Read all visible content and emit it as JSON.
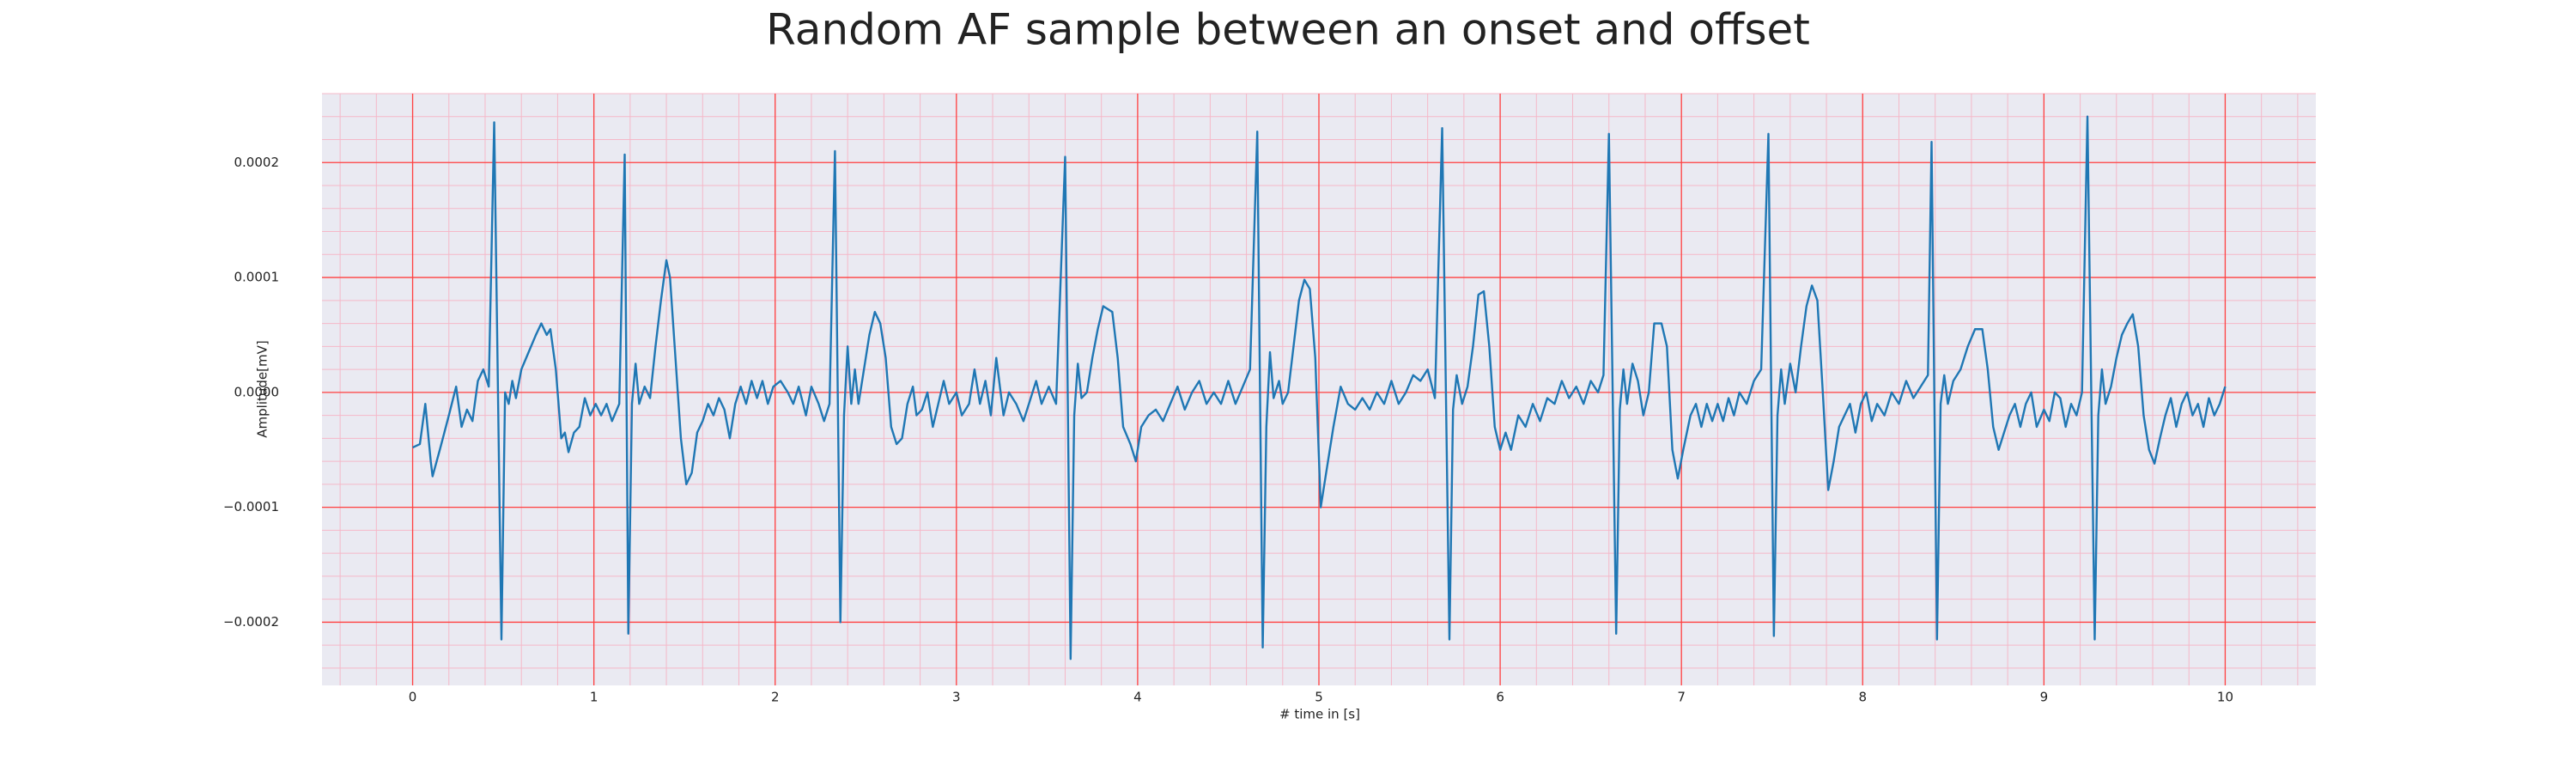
{
  "chart_data": {
    "type": "line",
    "title": "Random AF sample between an onset and offset",
    "xlabel": "# time in [s]",
    "ylabel": "Amplitude[mV]",
    "xlim": [
      -0.5,
      10.5
    ],
    "ylim": [
      -0.000255,
      0.00026
    ],
    "xticks": [
      0,
      1,
      2,
      3,
      4,
      5,
      6,
      7,
      8,
      9,
      10
    ],
    "yticks": [
      {
        "value": -0.0002,
        "label": "−0.0002"
      },
      {
        "value": -0.0001,
        "label": "−0.0001"
      },
      {
        "value": 0,
        "label": "0.0000"
      },
      0.0001,
      0.0002
    ],
    "grid": true,
    "minor_grid": true,
    "background": "#eaeaf2",
    "grid_color": "#ff4040",
    "minor_grid_color": "#f5b8c8",
    "series": [
      {
        "color": "#1f77b4",
        "x": [
          0.0,
          0.04,
          0.07,
          0.1,
          0.11,
          0.15,
          0.2,
          0.24,
          0.27,
          0.3,
          0.33,
          0.36,
          0.39,
          0.42,
          0.45,
          0.49,
          0.51,
          0.53,
          0.55,
          0.57,
          0.6,
          0.64,
          0.68,
          0.71,
          0.74,
          0.76,
          0.79,
          0.82,
          0.84,
          0.86,
          0.89,
          0.92,
          0.95,
          0.98,
          1.01,
          1.04,
          1.07,
          1.1,
          1.14,
          1.17,
          1.19,
          1.21,
          1.23,
          1.25,
          1.28,
          1.31,
          1.34,
          1.37,
          1.4,
          1.42,
          1.45,
          1.48,
          1.51,
          1.54,
          1.57,
          1.6,
          1.63,
          1.66,
          1.69,
          1.72,
          1.75,
          1.78,
          1.81,
          1.84,
          1.87,
          1.9,
          1.93,
          1.96,
          1.99,
          2.03,
          2.07,
          2.1,
          2.13,
          2.17,
          2.2,
          2.24,
          2.27,
          2.3,
          2.33,
          2.36,
          2.38,
          2.4,
          2.42,
          2.44,
          2.46,
          2.49,
          2.52,
          2.55,
          2.58,
          2.61,
          2.64,
          2.67,
          2.7,
          2.73,
          2.76,
          2.78,
          2.81,
          2.84,
          2.87,
          2.9,
          2.93,
          2.96,
          3.0,
          3.03,
          3.07,
          3.1,
          3.13,
          3.16,
          3.19,
          3.22,
          3.26,
          3.29,
          3.33,
          3.37,
          3.4,
          3.44,
          3.47,
          3.51,
          3.55,
          3.6,
          3.63,
          3.65,
          3.67,
          3.69,
          3.72,
          3.75,
          3.78,
          3.81,
          3.86,
          3.89,
          3.92,
          3.96,
          3.99,
          4.02,
          4.06,
          4.1,
          4.14,
          4.18,
          4.22,
          4.26,
          4.3,
          4.34,
          4.38,
          4.42,
          4.46,
          4.5,
          4.54,
          4.58,
          4.62,
          4.66,
          4.69,
          4.71,
          4.73,
          4.75,
          4.78,
          4.8,
          4.83,
          4.86,
          4.89,
          4.92,
          4.95,
          4.98,
          5.01,
          5.04,
          5.08,
          5.12,
          5.16,
          5.2,
          5.24,
          5.28,
          5.32,
          5.36,
          5.4,
          5.44,
          5.48,
          5.52,
          5.56,
          5.6,
          5.64,
          5.68,
          5.72,
          5.74,
          5.76,
          5.79,
          5.82,
          5.85,
          5.88,
          5.91,
          5.94,
          5.97,
          6.0,
          6.03,
          6.06,
          6.1,
          6.14,
          6.18,
          6.22,
          6.26,
          6.3,
          6.34,
          6.38,
          6.42,
          6.46,
          6.5,
          6.54,
          6.57,
          6.6,
          6.64,
          6.66,
          6.68,
          6.7,
          6.73,
          6.76,
          6.79,
          6.82,
          6.85,
          6.89,
          6.92,
          6.95,
          6.98,
          7.01,
          7.05,
          7.08,
          7.11,
          7.14,
          7.17,
          7.2,
          7.23,
          7.26,
          7.29,
          7.32,
          7.36,
          7.4,
          7.44,
          7.48,
          7.51,
          7.53,
          7.55,
          7.57,
          7.6,
          7.63,
          7.66,
          7.69,
          7.72,
          7.75,
          7.78,
          7.81,
          7.84,
          7.87,
          7.9,
          7.93,
          7.96,
          7.99,
          8.02,
          8.05,
          8.08,
          8.12,
          8.16,
          8.2,
          8.24,
          8.28,
          8.32,
          8.36,
          8.38,
          8.41,
          8.43,
          8.45,
          8.47,
          8.5,
          8.54,
          8.58,
          8.62,
          8.66,
          8.69,
          8.72,
          8.75,
          8.78,
          8.81,
          8.84,
          8.87,
          8.9,
          8.93,
          8.96,
          9.0,
          9.03,
          9.06,
          9.09,
          9.12,
          9.15,
          9.18,
          9.21,
          9.24,
          9.28,
          9.3,
          9.32,
          9.34,
          9.37,
          9.4,
          9.43,
          9.46,
          9.49,
          9.52,
          9.55,
          9.58,
          9.61,
          9.64,
          9.67,
          9.7,
          9.73,
          9.76,
          9.79,
          9.82,
          9.85,
          9.88,
          9.91,
          9.94,
          9.97,
          10.0
        ],
        "values": [
          -4.8e-05,
          -4.5e-05,
          -1e-05,
          -6e-05,
          -7.3e-05,
          -5e-05,
          -2e-05,
          5e-06,
          -3e-05,
          -1.5e-05,
          -2.5e-05,
          1e-05,
          2e-05,
          5e-06,
          0.000235,
          -0.000215,
          0,
          -1e-05,
          1e-05,
          -5e-06,
          2e-05,
          3.5e-05,
          5e-05,
          6e-05,
          5e-05,
          5.5e-05,
          2e-05,
          -4e-05,
          -3.5e-05,
          -5.2e-05,
          -3.5e-05,
          -3e-05,
          -5e-06,
          -2e-05,
          -1e-05,
          -2e-05,
          -1e-05,
          -2.5e-05,
          -1e-05,
          0.000207,
          -0.00021,
          -1e-05,
          2.5e-05,
          -1e-05,
          5e-06,
          -5e-06,
          4e-05,
          8e-05,
          0.000115,
          0.0001,
          3e-05,
          -4e-05,
          -8e-05,
          -7e-05,
          -3.5e-05,
          -2.5e-05,
          -1e-05,
          -2e-05,
          -5e-06,
          -1.5e-05,
          -4e-05,
          -1e-05,
          5e-06,
          -1e-05,
          1e-05,
          -5e-06,
          1e-05,
          -1e-05,
          5e-06,
          1e-05,
          0,
          -1e-05,
          5e-06,
          -2e-05,
          5e-06,
          -1e-05,
          -2.5e-05,
          -1e-05,
          0.00021,
          -0.0002,
          -2e-05,
          4e-05,
          -1e-05,
          2e-05,
          -1e-05,
          2e-05,
          5e-05,
          7e-05,
          6e-05,
          3e-05,
          -3e-05,
          -4.5e-05,
          -4e-05,
          -1e-05,
          5e-06,
          -2e-05,
          -1.5e-05,
          0,
          -3e-05,
          -1e-05,
          1e-05,
          -1e-05,
          0,
          -2e-05,
          -1e-05,
          2e-05,
          -1e-05,
          1e-05,
          -2e-05,
          3e-05,
          -2e-05,
          0,
          -1e-05,
          -2.5e-05,
          -1e-05,
          1e-05,
          -1e-05,
          5e-06,
          -1e-05,
          0.000205,
          -0.000232,
          -2e-05,
          2.5e-05,
          -5e-06,
          0,
          3e-05,
          5.5e-05,
          7.5e-05,
          7e-05,
          3e-05,
          -3e-05,
          -4.5e-05,
          -6e-05,
          -3e-05,
          -2e-05,
          -1.5e-05,
          -2.5e-05,
          -1e-05,
          5e-06,
          -1.5e-05,
          0,
          1e-05,
          -1e-05,
          0,
          -1e-05,
          1e-05,
          -1e-05,
          5e-06,
          2e-05,
          0.000227,
          -0.000222,
          -3e-05,
          3.5e-05,
          -5e-06,
          1e-05,
          -1e-05,
          0,
          4e-05,
          8e-05,
          9.8e-05,
          9e-05,
          3e-05,
          -0.0001,
          -7e-05,
          -3e-05,
          5e-06,
          -1e-05,
          -1.5e-05,
          -5e-06,
          -1.5e-05,
          0,
          -1e-05,
          1e-05,
          -1e-05,
          0,
          1.5e-05,
          1e-05,
          2e-05,
          -5e-06,
          0.00023,
          -0.000215,
          -1.5e-05,
          1.5e-05,
          -1e-05,
          5e-06,
          4e-05,
          8.5e-05,
          8.8e-05,
          4e-05,
          -3e-05,
          -5e-05,
          -3.5e-05,
          -5e-05,
          -2e-05,
          -3e-05,
          -1e-05,
          -2.5e-05,
          -5e-06,
          -1e-05,
          1e-05,
          -5e-06,
          5e-06,
          -1e-05,
          1e-05,
          0,
          1.5e-05,
          0.000225,
          -0.00021,
          -1.5e-05,
          2e-05,
          -1e-05,
          2.5e-05,
          1e-05,
          -2e-05,
          0,
          6e-05,
          6e-05,
          4e-05,
          -5e-05,
          -7.5e-05,
          -5e-05,
          -2e-05,
          -1e-05,
          -3e-05,
          -1e-05,
          -2.5e-05,
          -1e-05,
          -2.5e-05,
          -5e-06,
          -2e-05,
          0,
          -1e-05,
          1e-05,
          2e-05,
          0.000225,
          -0.000212,
          -2e-05,
          2e-05,
          -1e-05,
          2.5e-05,
          0,
          4e-05,
          7.5e-05,
          9.3e-05,
          8e-05,
          0,
          -8.5e-05,
          -6e-05,
          -3e-05,
          -2e-05,
          -1e-05,
          -3.5e-05,
          -1e-05,
          0,
          -2.5e-05,
          -1e-05,
          -2e-05,
          0,
          -1e-05,
          1e-05,
          -5e-06,
          5e-06,
          1.5e-05,
          0.000218,
          -0.000215,
          -1e-05,
          1.5e-05,
          -1e-05,
          1e-05,
          2e-05,
          4e-05,
          5.5e-05,
          5.5e-05,
          2e-05,
          -3e-05,
          -5e-05,
          -3.5e-05,
          -2e-05,
          -1e-05,
          -3e-05,
          -1e-05,
          0,
          -3e-05,
          -1.5e-05,
          -2.5e-05,
          0,
          -5e-06,
          -3e-05,
          -1e-05,
          -2e-05,
          0,
          0.00024,
          -0.000215,
          -2e-05,
          2e-05,
          -1e-05,
          5e-06,
          3e-05,
          5e-05,
          6e-05,
          6.8e-05,
          4e-05,
          -2e-05,
          -5e-05,
          -6.2e-05,
          -4e-05,
          -2e-05,
          -5e-06,
          -3e-05,
          -1e-05,
          0,
          -2e-05,
          -1e-05,
          -3e-05,
          -5e-06,
          -2e-05,
          -1e-05,
          5e-06
        ]
      }
    ]
  }
}
